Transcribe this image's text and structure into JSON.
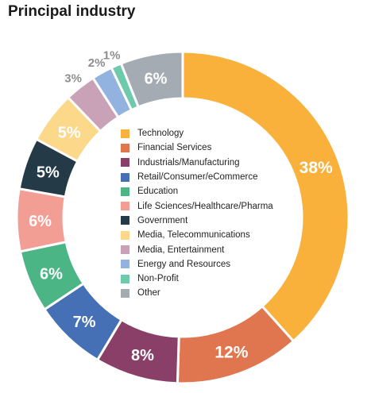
{
  "chart_data": {
    "type": "pie",
    "style": "donut",
    "title": "Principal industry",
    "categories": [
      "Technology",
      "Financial Services",
      "Industrials/Manufacturing",
      "Retail/Consumer/eCommerce",
      "Education",
      "Life Sciences/Healthcare/Pharma",
      "Government",
      "Media, Telecommunications",
      "Media, Entertainment",
      "Energy and Resources",
      "Non-Profit",
      "Other"
    ],
    "values": [
      38,
      12,
      8,
      7,
      6,
      6,
      5,
      5,
      3,
      2,
      1,
      6
    ],
    "value_labels": [
      "38%",
      "12%",
      "8%",
      "7%",
      "6%",
      "6%",
      "5%",
      "5%",
      "3%",
      "2%",
      "1%",
      "6%"
    ],
    "colors": [
      "#f9b13b",
      "#e0764f",
      "#8a3f69",
      "#4570b5",
      "#4cb585",
      "#f29e94",
      "#243a47",
      "#fbd88a",
      "#c9a2b7",
      "#92b2e0",
      "#6ec9ad",
      "#a4abb2"
    ],
    "legend_placement": "center"
  }
}
